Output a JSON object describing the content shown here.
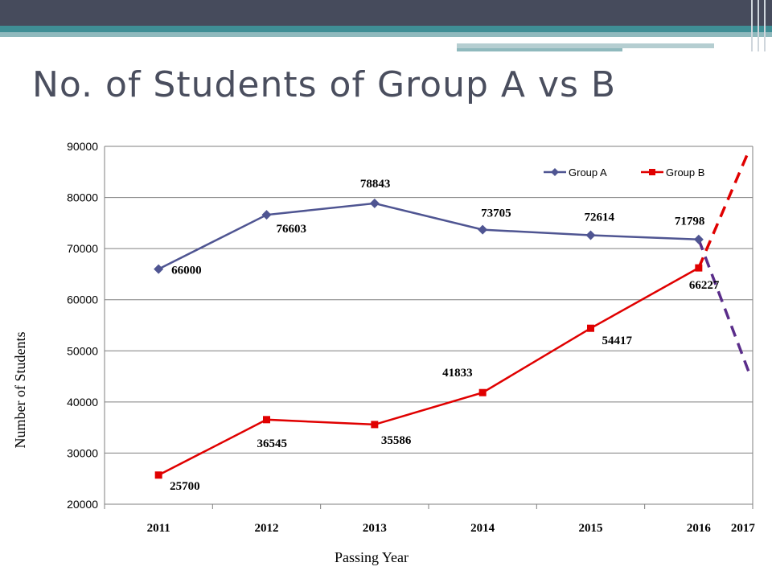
{
  "slide": {
    "title": "No. of Students of Group A vs B"
  },
  "chart_data": {
    "type": "line",
    "categories": [
      "2011",
      "2012",
      "2013",
      "2014",
      "2015",
      "2016"
    ],
    "extra_category": "2017",
    "ylim": [
      20000,
      90000
    ],
    "yticks": [
      "20000",
      "30000",
      "40000",
      "50000",
      "60000",
      "70000",
      "80000",
      "90000"
    ],
    "xlabel": "Passing Year",
    "ylabel": "Number of Students",
    "grid": true,
    "legend": "top-right",
    "series": [
      {
        "name": "Group A",
        "color": "#4f5592",
        "marker": "diamond",
        "values": [
          66000,
          76603,
          78843,
          73705,
          72614,
          71798
        ],
        "labels": [
          "66000",
          "76603",
          "78843",
          "73705",
          "72614",
          "71798"
        ],
        "label_pos": [
          "right",
          "below",
          "above",
          "above",
          "above",
          "above"
        ]
      },
      {
        "name": "Group B",
        "color": "#e00000",
        "marker": "square",
        "values": [
          25700,
          36545,
          35586,
          41833,
          54417,
          66227
        ],
        "labels": [
          "25700",
          "36545",
          "35586",
          "41833",
          "54417",
          "66227"
        ],
        "label_pos": [
          "below",
          "below",
          "below",
          "above",
          "below",
          "below"
        ]
      }
    ],
    "projections": [
      {
        "series": "Group A",
        "color": "#5a2d8a",
        "to_value": 46000
      },
      {
        "series": "Group B",
        "color": "#e00000",
        "to_value": 89000
      }
    ],
    "extra_category_color": "#c00000"
  }
}
